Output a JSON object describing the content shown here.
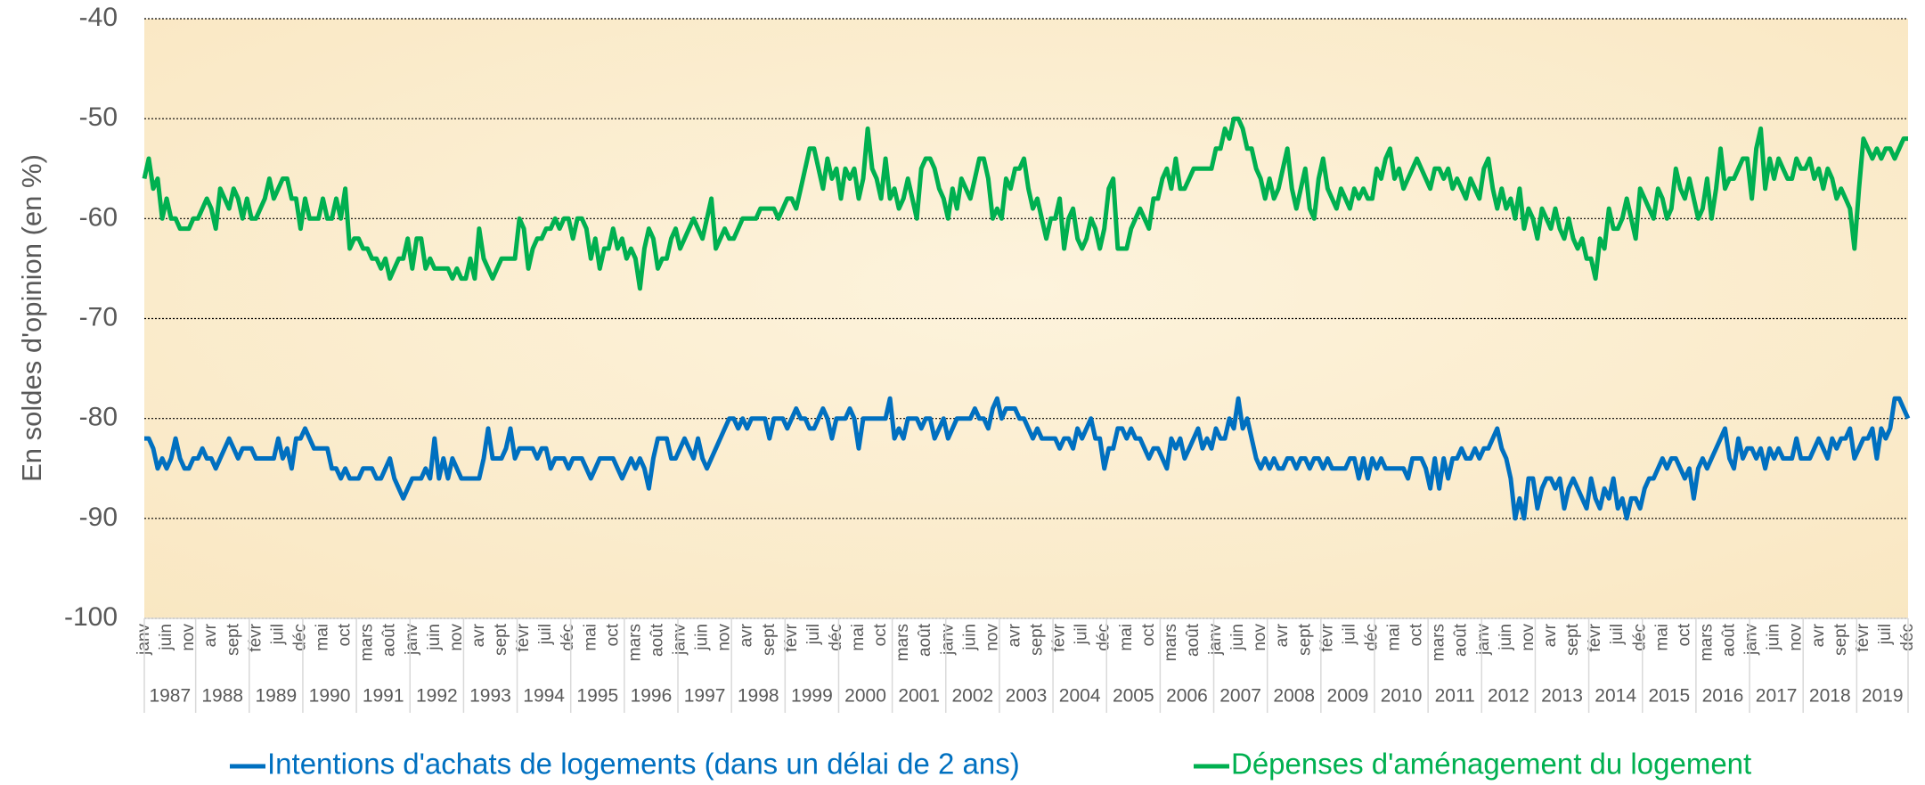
{
  "chart_data": {
    "type": "line",
    "y_label": "En soldes d'opinion (en %)",
    "ylim": [
      -100,
      -40
    ],
    "yticks": [
      -100,
      -90,
      -80,
      -70,
      -60,
      -50,
      -40
    ],
    "grid": true,
    "years": [
      "1987",
      "1988",
      "1989",
      "1990",
      "1991",
      "1992",
      "1993",
      "1994",
      "1995",
      "1996",
      "1997",
      "1998",
      "1999",
      "2000",
      "2001",
      "2002",
      "2003",
      "2004",
      "2005",
      "2006",
      "2007",
      "2008",
      "2009",
      "2010",
      "2011",
      "2012",
      "2013",
      "2014",
      "2015",
      "2016",
      "2017",
      "2018",
      "2019"
    ],
    "categories": [
      "janv",
      null,
      null,
      null,
      null,
      "juin",
      null,
      null,
      null,
      null,
      "nov",
      null,
      null,
      null,
      null,
      "avr",
      null,
      null,
      null,
      null,
      "sept",
      null,
      null,
      null,
      null,
      "févr",
      null,
      null,
      null,
      null,
      "juil",
      null,
      null,
      null,
      null,
      "déc",
      null,
      null,
      null,
      null,
      "mai",
      null,
      null,
      null,
      null,
      "oct",
      null,
      null,
      null,
      null,
      "mars",
      null,
      null,
      null,
      null,
      "août",
      null,
      null,
      null,
      null,
      "janv",
      null,
      null,
      null,
      null,
      "juin",
      null,
      null,
      null,
      null,
      "nov",
      null,
      null,
      null,
      null,
      "avr",
      null,
      null,
      null,
      null,
      "sept",
      null,
      null,
      null,
      null,
      "févr",
      null,
      null,
      null,
      null,
      "juil",
      null,
      null,
      null,
      null,
      "déc",
      null,
      null,
      null,
      null,
      "mai",
      null,
      null,
      null,
      null,
      "oct",
      null,
      null,
      null,
      null,
      "mars",
      null,
      null,
      null,
      null,
      "août",
      null,
      null,
      null,
      null,
      "janv",
      null,
      null,
      null,
      null,
      "juin",
      null,
      null,
      null,
      null,
      "nov",
      null,
      null,
      null,
      null,
      "avr",
      null,
      null,
      null,
      null,
      "sept",
      null,
      null,
      null,
      null,
      "févr",
      null,
      null,
      null,
      null,
      "juil",
      null,
      null,
      null,
      null,
      "déc",
      null,
      null,
      null,
      null,
      "mai",
      null,
      null,
      null,
      null,
      "oct",
      null,
      null,
      null,
      null,
      "mars",
      null,
      null,
      null,
      null,
      "août",
      null,
      null,
      null,
      null,
      "janv",
      null,
      null,
      null,
      null,
      "juin",
      null,
      null,
      null,
      null,
      "nov",
      null,
      null,
      null,
      null,
      "avr",
      null,
      null,
      null,
      null,
      "sept",
      null,
      null,
      null,
      null,
      "févr",
      null,
      null,
      null,
      null,
      "juil",
      null,
      null,
      null,
      null,
      "déc",
      null,
      null,
      null,
      null,
      "mai",
      null,
      null,
      null,
      null,
      "oct",
      null,
      null,
      null,
      null,
      "mars",
      null,
      null,
      null,
      null,
      "août",
      null,
      null,
      null,
      null,
      "janv",
      null,
      null,
      null,
      null,
      "juin",
      null,
      null,
      null,
      null,
      "nov",
      null,
      null,
      null,
      null,
      "avr",
      null,
      null,
      null,
      null,
      "sept",
      null,
      null,
      null,
      null,
      "févr",
      null,
      null,
      null,
      null,
      "juil",
      null,
      null,
      null,
      null,
      "déc",
      null,
      null,
      null,
      null,
      "mai",
      null,
      null,
      null,
      null,
      "oct",
      null,
      null,
      null,
      null,
      "mars",
      null,
      null,
      null,
      null,
      "août",
      null,
      null,
      null,
      null,
      "janv",
      null,
      null,
      null,
      null,
      "juin",
      null,
      null,
      null,
      null,
      "nov",
      null,
      null,
      null,
      null,
      "avr",
      null,
      null,
      null,
      null,
      "sept",
      null,
      null,
      null,
      null,
      "févr",
      null,
      null,
      null,
      null,
      "juil",
      null,
      null,
      null,
      null,
      "déc",
      null,
      null,
      null,
      null,
      "mai",
      null,
      null,
      null,
      null,
      "oct",
      null,
      null,
      null,
      null,
      "mars",
      null,
      null,
      null,
      null,
      "août",
      null,
      null,
      null,
      null,
      "janv",
      null,
      null,
      null,
      null,
      "juin",
      null,
      null,
      null,
      null,
      "nov",
      null,
      null,
      null,
      null,
      "avr",
      null,
      null,
      null,
      null,
      "sept",
      null,
      null,
      null,
      null,
      "févr",
      null,
      null,
      null,
      null,
      "juil",
      null,
      null,
      null,
      null,
      "déc"
    ],
    "series": [
      {
        "name": "Intentions d'achats de logements (dans un délai de 2 ans)",
        "color": "#0070c0",
        "values": [
          -82,
          -82,
          -83,
          -85,
          -84,
          -85,
          -84,
          -82,
          -84,
          -85,
          -85,
          -84,
          -84,
          -83,
          -84,
          -84,
          -85,
          -84,
          -83,
          -82,
          -83,
          -84,
          -83,
          -83,
          -83,
          -84,
          -84,
          -84,
          -84,
          -84,
          -82,
          -84,
          -83,
          -85,
          -82,
          -82,
          -81,
          -82,
          -83,
          -83,
          -83,
          -83,
          -85,
          -85,
          -86,
          -85,
          -86,
          -86,
          -86,
          -85,
          -85,
          -85,
          -86,
          -86,
          -85,
          -84,
          -86,
          -87,
          -88,
          -87,
          -86,
          -86,
          -86,
          -85,
          -86,
          -82,
          -86,
          -84,
          -86,
          -84,
          -85,
          -86,
          -86,
          -86,
          -86,
          -86,
          -84,
          -81,
          -84,
          -84,
          -84,
          -83,
          -81,
          -84,
          -83,
          -83,
          -83,
          -83,
          -84,
          -83,
          -83,
          -85,
          -84,
          -84,
          -84,
          -85,
          -84,
          -84,
          -84,
          -85,
          -86,
          -85,
          -84,
          -84,
          -84,
          -84,
          -85,
          -86,
          -85,
          -84,
          -85,
          -84,
          -85,
          -87,
          -84,
          -82,
          -82,
          -82,
          -84,
          -84,
          -83,
          -82,
          -83,
          -84,
          -82,
          -84,
          -85,
          -84,
          -83,
          -82,
          -81,
          -80,
          -80,
          -81,
          -80,
          -81,
          -80,
          -80,
          -80,
          -80,
          -82,
          -80,
          -80,
          -80,
          -81,
          -80,
          -79,
          -80,
          -80,
          -81,
          -81,
          -80,
          -79,
          -80,
          -82,
          -80,
          -80,
          -80,
          -79,
          -80,
          -83,
          -80,
          -80,
          -80,
          -80,
          -80,
          -80,
          -78,
          -82,
          -81,
          -82,
          -80,
          -80,
          -80,
          -81,
          -80,
          -80,
          -82,
          -81,
          -80,
          -82,
          -81,
          -80,
          -80,
          -80,
          -80,
          -79,
          -80,
          -80,
          -81,
          -79,
          -78,
          -80,
          -79,
          -79,
          -79,
          -80,
          -80,
          -81,
          -82,
          -81,
          -82,
          -82,
          -82,
          -82,
          -83,
          -82,
          -82,
          -83,
          -81,
          -82,
          -81,
          -80,
          -82,
          -82,
          -85,
          -83,
          -83,
          -81,
          -81,
          -82,
          -81,
          -82,
          -82,
          -83,
          -84,
          -83,
          -83,
          -84,
          -85,
          -82,
          -83,
          -82,
          -84,
          -83,
          -82,
          -81,
          -83,
          -82,
          -83,
          -81,
          -82,
          -82,
          -80,
          -81,
          -78,
          -81,
          -80,
          -82,
          -84,
          -85,
          -84,
          -85,
          -84,
          -85,
          -85,
          -84,
          -84,
          -85,
          -84,
          -84,
          -85,
          -84,
          -84,
          -85,
          -84,
          -85,
          -85,
          -85,
          -85,
          -84,
          -84,
          -86,
          -84,
          -86,
          -84,
          -85,
          -84,
          -85,
          -85,
          -85,
          -85,
          -85,
          -86,
          -84,
          -84,
          -84,
          -85,
          -87,
          -84,
          -87,
          -84,
          -86,
          -84,
          -84,
          -83,
          -84,
          -84,
          -83,
          -84,
          -83,
          -83,
          -82,
          -81,
          -83,
          -84,
          -86,
          -90,
          -88,
          -90,
          -86,
          -86,
          -89,
          -87,
          -86,
          -86,
          -87,
          -86,
          -89,
          -87,
          -86,
          -87,
          -88,
          -89,
          -86,
          -88,
          -89,
          -87,
          -88,
          -86,
          -89,
          -88,
          -90,
          -88,
          -88,
          -89,
          -87,
          -86,
          -86,
          -85,
          -84,
          -85,
          -84,
          -84,
          -85,
          -86,
          -85,
          -88,
          -85,
          -84,
          -85,
          -84,
          -83,
          -82,
          -81,
          -84,
          -85,
          -82,
          -84,
          -83,
          -83,
          -84,
          -83,
          -85,
          -83,
          -84,
          -83,
          -84,
          -84,
          -84,
          -82,
          -84,
          -84,
          -84,
          -83,
          -82,
          -83,
          -84,
          -82,
          -83,
          -82,
          -82,
          -81,
          -84,
          -83,
          -82,
          -82,
          -81,
          -84,
          -81,
          -82,
          -81,
          -78,
          -78,
          -79,
          -80
        ]
      },
      {
        "name": "Dépenses d'aménagement du logement",
        "color": "#00b050",
        "values": [
          -56,
          -54,
          -57,
          -56,
          -60,
          -58,
          -60,
          -60,
          -61,
          -61,
          -61,
          -60,
          -60,
          -59,
          -58,
          -59,
          -61,
          -57,
          -58,
          -59,
          -57,
          -58,
          -60,
          -58,
          -60,
          -60,
          -59,
          -58,
          -56,
          -58,
          -57,
          -56,
          -56,
          -58,
          -58,
          -61,
          -58,
          -60,
          -60,
          -60,
          -58,
          -60,
          -60,
          -58,
          -60,
          -57,
          -63,
          -62,
          -62,
          -63,
          -63,
          -64,
          -64,
          -65,
          -64,
          -66,
          -65,
          -64,
          -64,
          -62,
          -65,
          -62,
          -62,
          -65,
          -64,
          -65,
          -65,
          -65,
          -65,
          -66,
          -65,
          -66,
          -66,
          -64,
          -66,
          -61,
          -64,
          -65,
          -66,
          -65,
          -64,
          -64,
          -64,
          -64,
          -60,
          -61,
          -65,
          -63,
          -62,
          -62,
          -61,
          -61,
          -60,
          -61,
          -60,
          -60,
          -62,
          -60,
          -60,
          -61,
          -64,
          -62,
          -65,
          -63,
          -63,
          -61,
          -63,
          -62,
          -64,
          -63,
          -64,
          -67,
          -63,
          -61,
          -62,
          -65,
          -64,
          -64,
          -62,
          -61,
          -63,
          -62,
          -61,
          -60,
          -61,
          -62,
          -60,
          -58,
          -63,
          -62,
          -61,
          -62,
          -62,
          -61,
          -60,
          -60,
          -60,
          -60,
          -59,
          -59,
          -59,
          -59,
          -60,
          -59,
          -58,
          -58,
          -59,
          -57,
          -55,
          -53,
          -53,
          -55,
          -57,
          -54,
          -56,
          -55,
          -58,
          -55,
          -56,
          -55,
          -58,
          -56,
          -51,
          -55,
          -56,
          -58,
          -54,
          -58,
          -57,
          -59,
          -58,
          -56,
          -58,
          -60,
          -55,
          -54,
          -54,
          -55,
          -57,
          -58,
          -60,
          -57,
          -59,
          -56,
          -57,
          -58,
          -56,
          -54,
          -54,
          -56,
          -60,
          -59,
          -60,
          -56,
          -57,
          -55,
          -55,
          -54,
          -57,
          -59,
          -58,
          -60,
          -62,
          -60,
          -60,
          -58,
          -63,
          -60,
          -59,
          -62,
          -63,
          -62,
          -60,
          -61,
          -63,
          -61,
          -57,
          -56,
          -63,
          -63,
          -63,
          -61,
          -60,
          -59,
          -60,
          -61,
          -58,
          -58,
          -56,
          -55,
          -57,
          -54,
          -57,
          -57,
          -56,
          -55,
          -55,
          -55,
          -55,
          -55,
          -53,
          -53,
          -51,
          -52,
          -50,
          -50,
          -51,
          -53,
          -53,
          -55,
          -56,
          -58,
          -56,
          -58,
          -57,
          -55,
          -53,
          -57,
          -59,
          -57,
          -55,
          -59,
          -60,
          -56,
          -54,
          -57,
          -58,
          -59,
          -57,
          -58,
          -59,
          -57,
          -58,
          -57,
          -58,
          -58,
          -55,
          -56,
          -54,
          -53,
          -56,
          -55,
          -57,
          -56,
          -55,
          -54,
          -55,
          -56,
          -57,
          -55,
          -55,
          -56,
          -55,
          -57,
          -56,
          -57,
          -58,
          -56,
          -57,
          -58,
          -55,
          -54,
          -57,
          -59,
          -57,
          -59,
          -58,
          -60,
          -57,
          -61,
          -59,
          -60,
          -62,
          -59,
          -60,
          -61,
          -59,
          -61,
          -62,
          -60,
          -62,
          -63,
          -62,
          -64,
          -64,
          -66,
          -62,
          -63,
          -59,
          -61,
          -61,
          -60,
          -58,
          -60,
          -62,
          -57,
          -58,
          -59,
          -60,
          -57,
          -58,
          -60,
          -59,
          -55,
          -57,
          -58,
          -56,
          -58,
          -60,
          -59,
          -56,
          -60,
          -57,
          -53,
          -57,
          -56,
          -56,
          -55,
          -54,
          -54,
          -58,
          -53,
          -51,
          -57,
          -54,
          -56,
          -54,
          -55,
          -56,
          -56,
          -54,
          -55,
          -55,
          -54,
          -56,
          -55,
          -57,
          -55,
          -56,
          -58,
          -57,
          -58,
          -59,
          -63,
          -57,
          -52,
          -53,
          -54,
          -53,
          -54,
          -53,
          -53,
          -54,
          -53,
          -52,
          -52
        ]
      }
    ]
  }
}
